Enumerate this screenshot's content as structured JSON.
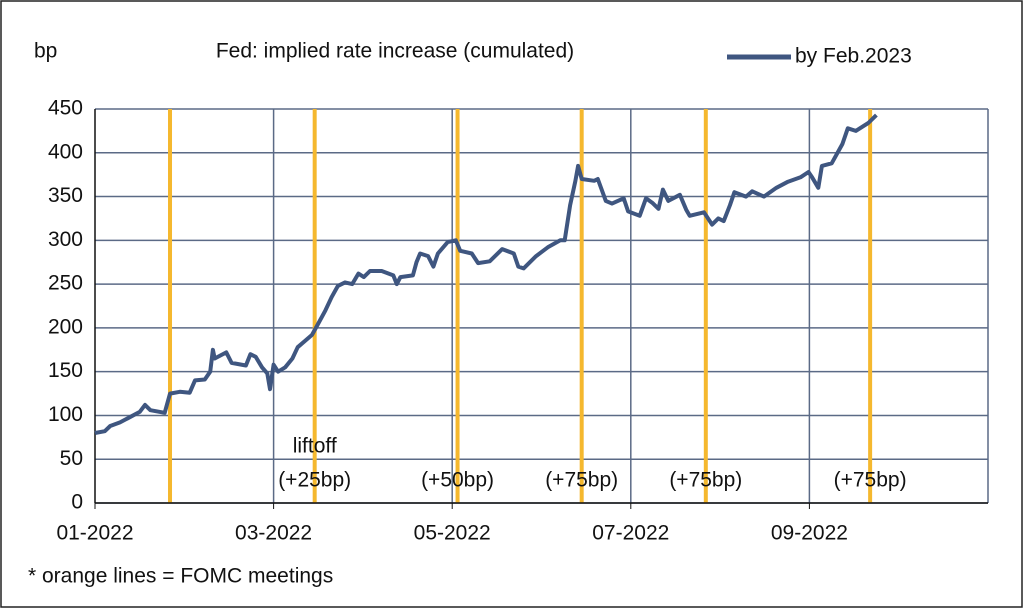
{
  "chart_data": {
    "type": "line",
    "title": "Fed: implied rate increase (cumulated)",
    "y_unit": "bp",
    "footnote": "* orange lines = FOMC meetings",
    "xlim": [
      0,
      10
    ],
    "xticks": [
      {
        "value": 0,
        "label": "01-2022"
      },
      {
        "value": 2,
        "label": "03-2022"
      },
      {
        "value": 4,
        "label": "05-2022"
      },
      {
        "value": 6,
        "label": "07-2022"
      },
      {
        "value": 8,
        "label": "09-2022"
      }
    ],
    "ylim": [
      0,
      450
    ],
    "yticks": [
      0,
      50,
      100,
      150,
      200,
      250,
      300,
      350,
      400,
      450
    ],
    "grid": true,
    "legend": "top-right",
    "series": [
      {
        "name": "by Feb.2023",
        "color": "#3f5680",
        "x": [
          0,
          0.11,
          0.17,
          0.28,
          0.39,
          0.5,
          0.56,
          0.62,
          0.78,
          0.84,
          0.95,
          1.06,
          1.12,
          1.23,
          1.29,
          1.32,
          1.34,
          1.47,
          1.53,
          1.69,
          1.74,
          1.8,
          1.87,
          1.93,
          1.96,
          2,
          2.05,
          2.13,
          2.21,
          2.27,
          2.35,
          2.43,
          2.5,
          2.58,
          2.65,
          2.72,
          2.8,
          2.88,
          2.95,
          3.01,
          3.08,
          3.21,
          3.34,
          3.38,
          3.42,
          3.56,
          3.6,
          3.64,
          3.73,
          3.79,
          3.84,
          3.95,
          4.04,
          4.09,
          4.22,
          4.29,
          4.42,
          4.56,
          4.69,
          4.74,
          4.8,
          4.94,
          5.07,
          5.21,
          5.26,
          5.32,
          5.38,
          5.41,
          5.45,
          5.59,
          5.63,
          5.72,
          5.79,
          5.92,
          5.97,
          6.1,
          6.17,
          6.24,
          6.31,
          6.36,
          6.42,
          6.55,
          6.62,
          6.66,
          6.82,
          6.91,
          6.98,
          7.04,
          7.11,
          7.16,
          7.29,
          7.36,
          7.49,
          7.63,
          7.76,
          7.9,
          7.99,
          8.03,
          8.1,
          8.14,
          8.25,
          8.37,
          8.43,
          8.52,
          8.66,
          8.75
        ],
        "values": [
          80,
          82,
          88,
          92,
          98,
          104,
          112,
          106,
          103,
          125,
          127,
          126,
          140,
          141,
          150,
          175,
          165,
          172,
          160,
          157,
          170,
          167,
          155,
          148,
          130,
          158,
          150,
          155,
          165,
          178,
          185,
          192,
          205,
          220,
          235,
          248,
          252,
          250,
          262,
          258,
          265,
          265,
          260,
          250,
          258,
          260,
          275,
          285,
          282,
          270,
          285,
          298,
          300,
          288,
          285,
          274,
          276,
          290,
          285,
          270,
          268,
          282,
          292,
          300,
          300,
          340,
          368,
          385,
          370,
          368,
          370,
          345,
          342,
          348,
          333,
          328,
          348,
          343,
          336,
          358,
          345,
          352,
          335,
          328,
          332,
          318,
          325,
          322,
          340,
          355,
          350,
          356,
          350,
          360,
          367,
          372,
          378,
          372,
          360,
          385,
          388,
          410,
          428,
          425,
          434,
          443
        ]
      }
    ],
    "fomc_meetings": {
      "color": "#f5b82e",
      "x": [
        0.84,
        2.46,
        4.06,
        5.45,
        6.84,
        8.68
      ],
      "labels": [
        null,
        [
          "liftoff",
          "(+25bp)"
        ],
        [
          "(+50bp)"
        ],
        [
          "(+75bp)"
        ],
        [
          "(+75bp)"
        ],
        [
          "(+75bp)"
        ]
      ]
    }
  }
}
